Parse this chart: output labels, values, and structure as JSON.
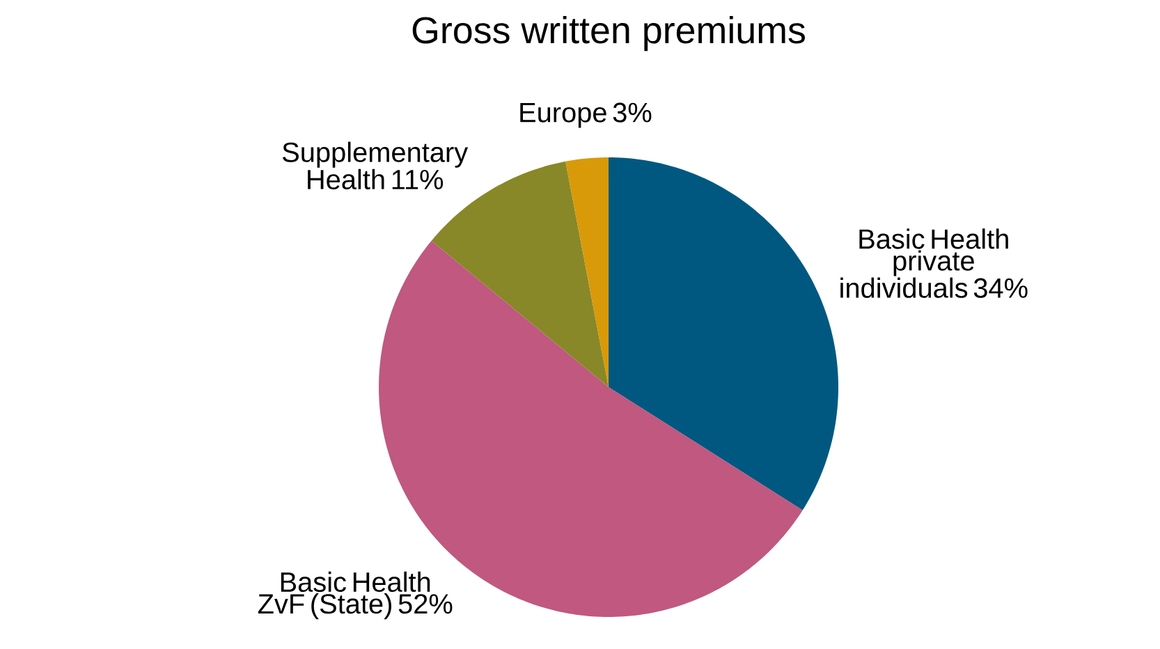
{
  "chart_data": {
    "type": "pie",
    "title": "Gross written premiums",
    "categories": [
      "Basic Health private individuals",
      "Basic Health ZvF (State)",
      "Supplementary Health",
      "Europe"
    ],
    "values": [
      34,
      52,
      11,
      3
    ],
    "value_labels": [
      "34%",
      "52%",
      "11%",
      "3%"
    ],
    "colors": [
      "#005880",
      "#c05880",
      "#888828",
      "#d89a08"
    ]
  }
}
